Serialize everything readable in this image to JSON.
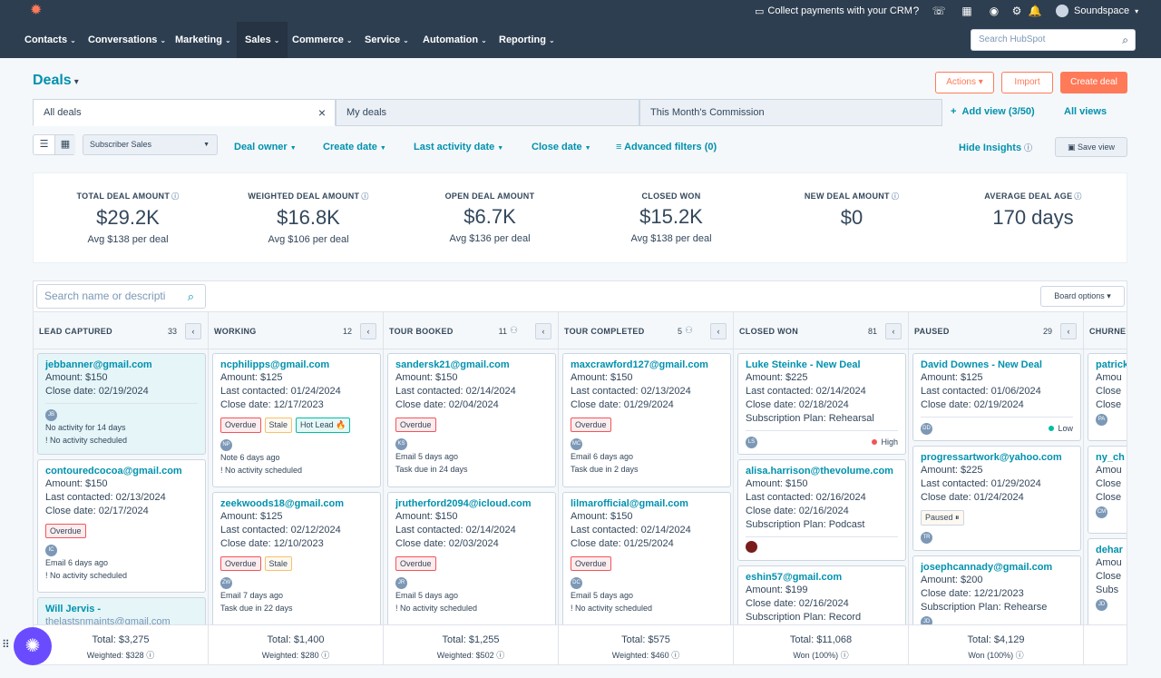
{
  "topbar": {
    "promo": "Collect payments with your CRM",
    "account": "Soundspace"
  },
  "nav": {
    "items": [
      "Contacts",
      "Conversations",
      "Marketing",
      "Sales",
      "Commerce",
      "Service",
      "Automation",
      "Reporting"
    ],
    "search_placeholder": "Search HubSpot"
  },
  "header": {
    "title": "Deals",
    "actions": "Actions",
    "import": "Import",
    "create": "Create deal"
  },
  "tabs": {
    "items": [
      "All deals",
      "My deals",
      "This Month's Commission"
    ],
    "add_view": "Add view (3/50)",
    "all_views": "All views"
  },
  "filters": {
    "pipeline": "Subscriber Sales",
    "deal_owner": "Deal owner",
    "create_date": "Create date",
    "last_activity": "Last activity date",
    "close_date": "Close date",
    "advanced": "Advanced filters (0)",
    "hide_insights": "Hide Insights",
    "save_view": "Save view"
  },
  "insights": [
    {
      "label": "TOTAL DEAL AMOUNT",
      "value": "$29.2K",
      "sub": "Avg $138 per deal"
    },
    {
      "label": "WEIGHTED DEAL AMOUNT",
      "value": "$16.8K",
      "sub": "Avg $106 per deal"
    },
    {
      "label": "OPEN DEAL AMOUNT",
      "value": "$6.7K",
      "sub": "Avg $136 per deal"
    },
    {
      "label": "CLOSED WON",
      "value": "$15.2K",
      "sub": "Avg $138 per deal"
    },
    {
      "label": "NEW DEAL AMOUNT",
      "value": "$0",
      "sub": ""
    },
    {
      "label": "AVERAGE DEAL AGE",
      "value": "170 days",
      "sub": ""
    }
  ],
  "board": {
    "search_placeholder": "Search name or descripti",
    "options": "Board options",
    "columns": [
      {
        "name": "LEAD CAPTURED",
        "count": "33",
        "total": "Total: $3,275",
        "weighted": "Weighted: $328"
      },
      {
        "name": "WORKING",
        "count": "12",
        "total": "Total: $1,400",
        "weighted": "Weighted: $280"
      },
      {
        "name": "TOUR BOOKED",
        "count": "11",
        "total": "Total: $1,255",
        "weighted": "Weighted: $502"
      },
      {
        "name": "TOUR COMPLETED",
        "count": "5",
        "total": "Total: $575",
        "weighted": "Weighted: $460"
      },
      {
        "name": "CLOSED WON",
        "count": "81",
        "total": "Total: $11,068",
        "weighted": "Won (100%)"
      },
      {
        "name": "PAUSED",
        "count": "29",
        "total": "Total: $4,129",
        "weighted": "Won (100%)"
      },
      {
        "name": "CHURNE",
        "count": "",
        "total": "",
        "weighted": ""
      }
    ],
    "cards": {
      "c0a": {
        "title": "jebbanner@gmail.com",
        "l1": "Amount: $150",
        "l2": "Close date: 02/19/2024",
        "av": "JB",
        "m1": "No activity for 14 days",
        "m2": "No activity scheduled"
      },
      "c0b": {
        "title": "contouredcocoa@gmail.com",
        "l1": "Amount: $150",
        "l2": "Last contacted: 02/13/2024",
        "l3": "Close date: 02/17/2024",
        "tag1": "Overdue",
        "av": "IC",
        "m1": "Email 6 days ago",
        "m2": "No activity scheduled"
      },
      "c0c": {
        "title": "Will Jervis -",
        "l1": "thelastsnmaints@gmail.com"
      },
      "c1a": {
        "title": "ncphilipps@gmail.com",
        "l1": "Amount: $125",
        "l2": "Last contacted: 01/24/2024",
        "l3": "Close date: 12/17/2023",
        "tag1": "Overdue",
        "tag2": "Stale",
        "tag3": "Hot Lead 🔥",
        "av": "NP",
        "m1": "Note 6 days ago",
        "m2": "No activity scheduled"
      },
      "c1b": {
        "title": "zeekwoods18@gmail.com",
        "l1": "Amount: $125",
        "l2": "Last contacted: 02/12/2024",
        "l3": "Close date: 12/10/2023",
        "tag1": "Overdue",
        "tag2": "Stale",
        "av": "ZW",
        "m1": "Email 7 days ago",
        "m2": "Task due in 22 days"
      },
      "c2a": {
        "title": "sandersk21@gmail.com",
        "l1": "Amount: $150",
        "l2": "Last contacted: 02/14/2024",
        "l3": "Close date: 02/04/2024",
        "tag1": "Overdue",
        "av": "KS",
        "m1": "Email 5 days ago",
        "m2": "Task due in 24 days"
      },
      "c2b": {
        "title": "jrutherford2094@icloud.com",
        "l1": "Amount: $150",
        "l2": "Last contacted: 02/14/2024",
        "l3": "Close date: 02/03/2024",
        "tag1": "Overdue",
        "av": "JR",
        "m1": "Email 5 days ago",
        "m2": "No activity scheduled"
      },
      "c3a": {
        "title": "maxcrawford127@gmail.com",
        "l1": "Amount: $150",
        "l2": "Last contacted: 02/13/2024",
        "l3": "Close date: 01/29/2024",
        "tag1": "Overdue",
        "av": "MC",
        "m1": "Email 6 days ago",
        "m2": "Task due in 2 days"
      },
      "c3b": {
        "title": "lilmarofficial@gmail.com",
        "l1": "Amount: $150",
        "l2": "Last contacted: 02/14/2024",
        "l3": "Close date: 01/25/2024",
        "tag1": "Overdue",
        "av": "DC",
        "m1": "Email 5 days ago",
        "m2": "No activity scheduled"
      },
      "c4a": {
        "title": "Luke Steinke - New Deal",
        "l1": "Amount: $225",
        "l2": "Last contacted: 02/14/2024",
        "l3": "Close date: 02/18/2024",
        "l4": "Subscription Plan: Rehearsal",
        "av": "LS",
        "prio": "High"
      },
      "c4b": {
        "title": "alisa.harrison@thevolume.com",
        "l1": "Amount: $150",
        "l2": "Last contacted: 02/16/2024",
        "l3": "Close date: 02/16/2024",
        "l4": "Subscription Plan: Podcast"
      },
      "c4c": {
        "title": "eshin57@gmail.com",
        "l1": "Amount: $199",
        "l2": "Close date: 02/16/2024",
        "l3": "Subscription Plan: Record"
      },
      "c5a": {
        "title": "David Downes - New Deal",
        "l1": "Amount: $125",
        "l2": "Last contacted: 01/06/2024",
        "l3": "Close date: 02/19/2024",
        "av": "DD",
        "prio": "Low"
      },
      "c5b": {
        "title": "progressartwork@yahoo.com",
        "l1": "Amount: $225",
        "l2": "Last contacted: 01/29/2024",
        "l3": "Close date: 01/24/2024",
        "tag1": "Paused ⏸",
        "av": "TR"
      },
      "c5c": {
        "title": "josephcannady@gmail.com",
        "l1": "Amount: $200",
        "l2": "Close date: 12/21/2023",
        "l3": "Subscription Plan: Rehearse",
        "av": "JD"
      },
      "c6a": {
        "title": "patrick",
        "l1": "Amou",
        "l2": "Close",
        "l3": "Close",
        "av": "PA"
      },
      "c6b": {
        "title": "ny_ch",
        "l1": "Amou",
        "l2": "Close",
        "l3": "Close",
        "av": "CM"
      },
      "c6c": {
        "title": "dehar",
        "l1": "Amou",
        "l2": "Close",
        "l3": "Subs",
        "av": "JD"
      }
    }
  },
  "colors": {
    "brand": "#ff7a59",
    "link": "#0091ae",
    "nav": "#2d3e50"
  }
}
